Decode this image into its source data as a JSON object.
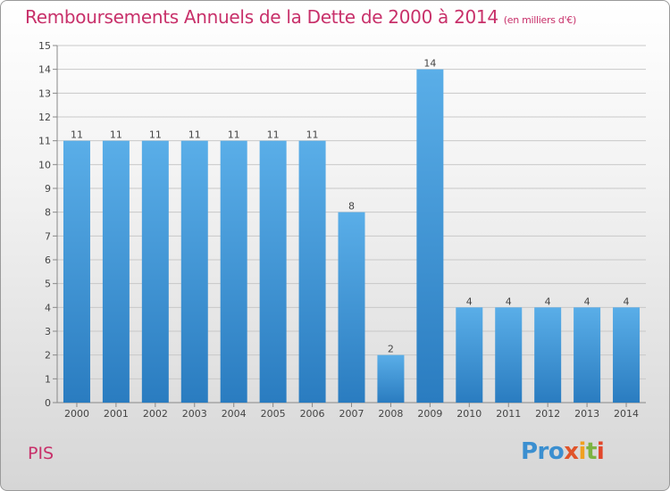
{
  "title": "Remboursements Annuels de la Dette de 2000 à 2014",
  "unit": "(en milliers d'€)",
  "commune": "PIS",
  "logo": {
    "p1": "Pro",
    "p2": "x",
    "p3": "i",
    "p4": "t",
    "p5": "i"
  },
  "colors": {
    "title": "#c8306a",
    "bar_top": "#5aaee8",
    "bar_bottom": "#2a7cc0",
    "grid": "#c8c8c8"
  },
  "chart_data": {
    "type": "bar",
    "categories": [
      "2000",
      "2001",
      "2002",
      "2003",
      "2004",
      "2005",
      "2006",
      "2007",
      "2008",
      "2009",
      "2010",
      "2011",
      "2012",
      "2013",
      "2014"
    ],
    "values": [
      11,
      11,
      11,
      11,
      11,
      11,
      11,
      8,
      2,
      14,
      4,
      4,
      4,
      4,
      4
    ],
    "data_labels": [
      "11",
      "11",
      "11",
      "11",
      "11",
      "11",
      "11",
      "8",
      "2",
      "14",
      "4",
      "4",
      "4",
      "4",
      "4"
    ],
    "yticks": [
      "0",
      "1",
      "2",
      "3",
      "4",
      "5",
      "6",
      "7",
      "8",
      "9",
      "10",
      "11",
      "12",
      "13",
      "14",
      "15"
    ],
    "ylim": [
      0,
      15
    ],
    "grid": true
  }
}
